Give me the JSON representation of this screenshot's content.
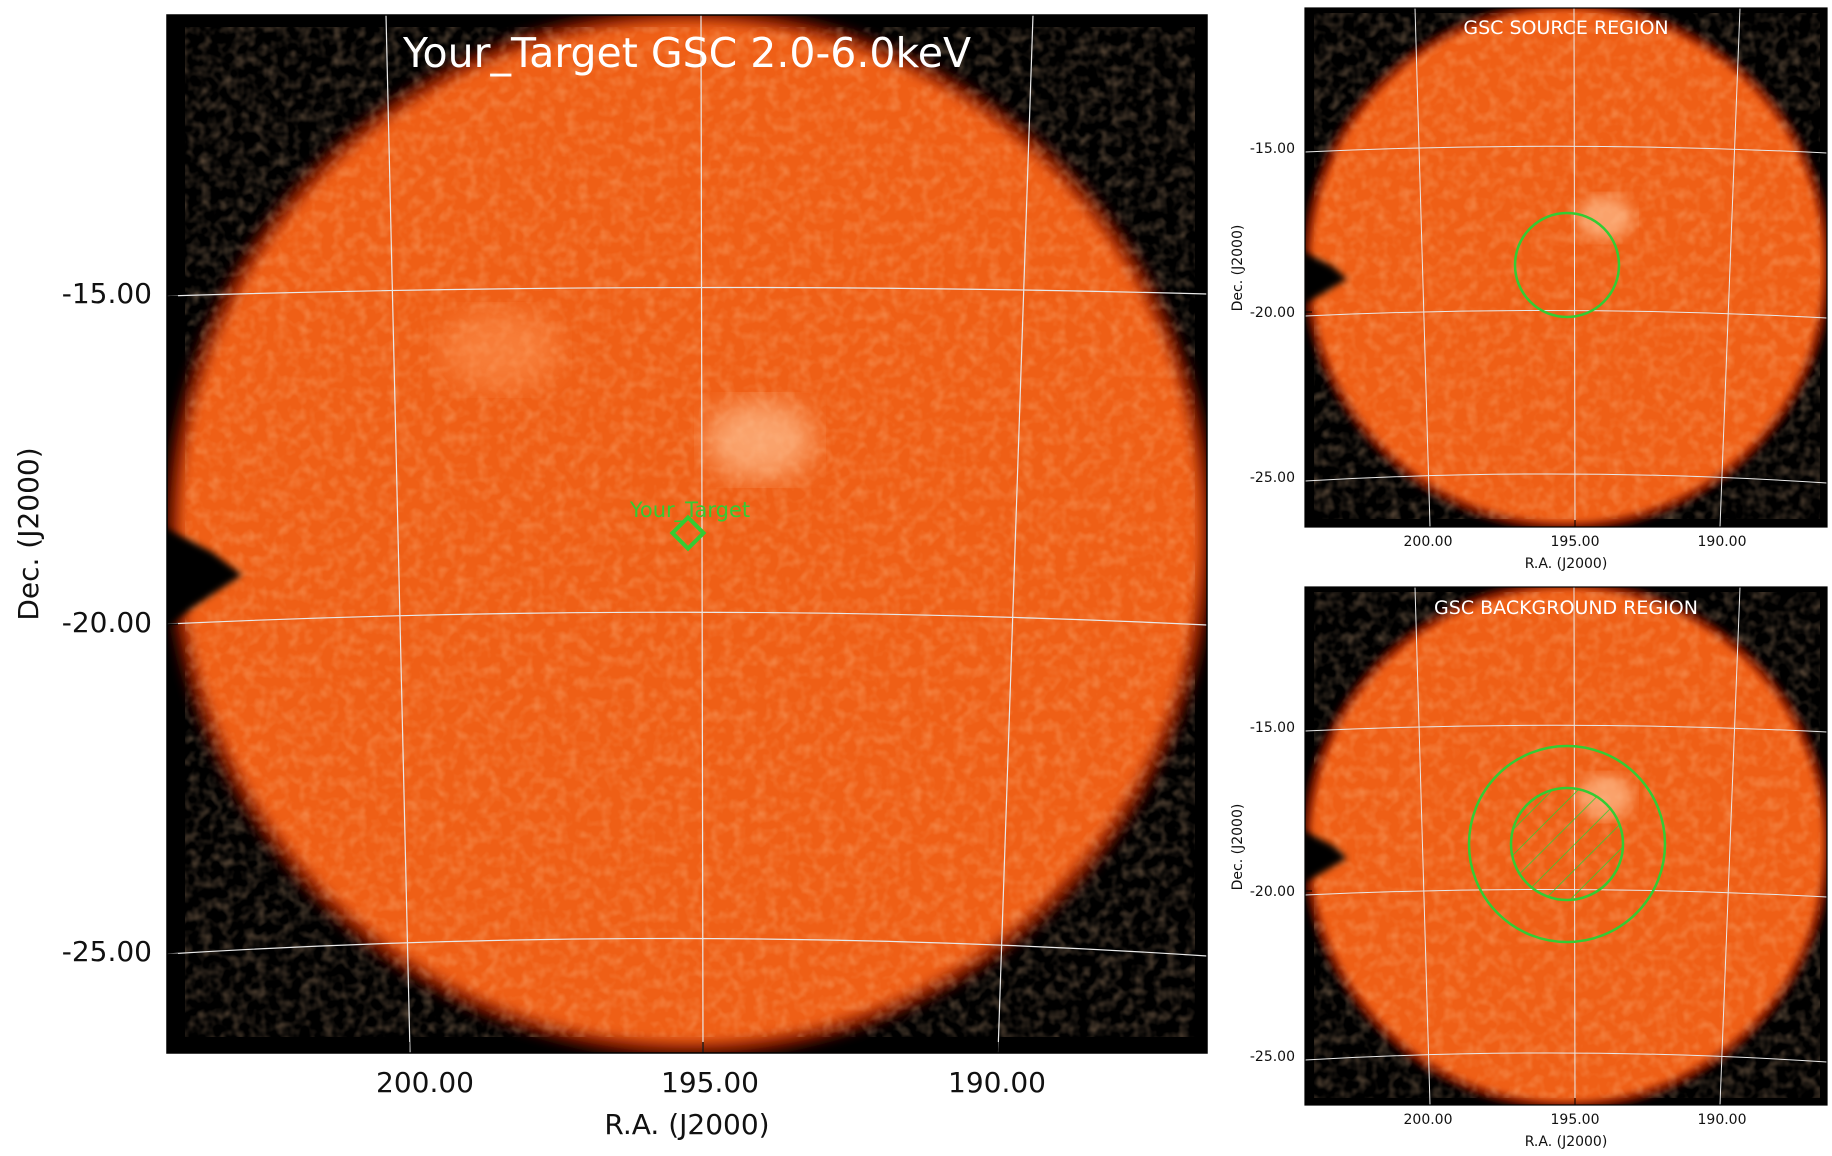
{
  "main_panel": {
    "title": "Your_Target GSC 2.0-6.0keV",
    "target_label": "Your_Target",
    "xlabel": "R.A. (J2000)",
    "ylabel": "Dec. (J2000)",
    "x_ticks": [
      "200.00",
      "195.00",
      "190.00"
    ],
    "y_ticks": [
      "-15.00",
      "-20.00",
      "-25.00"
    ]
  },
  "source_panel": {
    "title": "GSC SOURCE REGION",
    "xlabel": "R.A. (J2000)",
    "ylabel": "Dec. (J2000)",
    "x_ticks": [
      "200.00",
      "195.00",
      "190.00"
    ],
    "y_ticks": [
      "-15.00",
      "-20.00",
      "-25.00"
    ]
  },
  "background_panel": {
    "title": "GSC BACKGROUND REGION",
    "xlabel": "R.A. (J2000)",
    "ylabel": "Dec. (J2000)",
    "x_ticks": [
      "200.00",
      "195.00",
      "190.00"
    ],
    "y_ticks": [
      "-15.00",
      "-20.00",
      "-25.00"
    ]
  },
  "colors": {
    "image_orange": "#f0601a",
    "image_bright": "#f8a070",
    "region_green": "#33cc33",
    "grid": "#e8e8e8",
    "frame": "#000000"
  }
}
